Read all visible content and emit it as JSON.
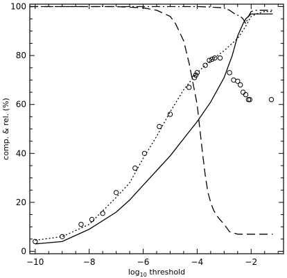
{
  "chart_data": {
    "type": "line",
    "xlabel_main": "log",
    "xlabel_sub": "10",
    "xlabel_rest": " threshold",
    "ylabel": "comp. & rel. (%)",
    "xlim": [
      -10.2,
      -0.8
    ],
    "ylim": [
      -1,
      101
    ],
    "x_ticks": [
      -10,
      -8,
      -6,
      -4,
      -2
    ],
    "x_tick_labels": [
      "−10",
      "−8",
      "−6",
      "−4",
      "−2"
    ],
    "y_ticks": [
      0,
      20,
      40,
      60,
      80,
      100
    ],
    "y_tick_labels": [
      "0",
      "20",
      "40",
      "60",
      "80",
      "100"
    ],
    "series": [
      {
        "style": "solid",
        "x": [
          -10,
          -9,
          -8,
          -7,
          -6.5,
          -6,
          -5.5,
          -5,
          -4.5,
          -4,
          -3.5,
          -3,
          -2.7,
          -2.5,
          -2.3,
          -2.2,
          -2.1,
          -2.0,
          -1.8,
          -1.5,
          -1.2
        ],
        "y": [
          3,
          4,
          9,
          16,
          21,
          27,
          33,
          39,
          46,
          53,
          61,
          71,
          80,
          88,
          93,
          95,
          96,
          97,
          97,
          97,
          97
        ]
      },
      {
        "style": "dotted",
        "x": [
          -10,
          -9,
          -8,
          -7,
          -6.5,
          -6,
          -5.5,
          -5,
          -4.5,
          -4,
          -3.5,
          -3,
          -2.5,
          -2.2,
          -2.0,
          -1.8,
          -1.5,
          -1.2
        ],
        "y": [
          4.5,
          6,
          11,
          22,
          28,
          38,
          47,
          57,
          66,
          73,
          78,
          82,
          87,
          92,
          96,
          97,
          98,
          98
        ]
      },
      {
        "style": "long-dash",
        "x": [
          -10.2,
          -7,
          -6,
          -5.5,
          -5,
          -4.8,
          -4.5,
          -4.3,
          -4.0,
          -3.9,
          -3.8,
          -3.7,
          -3.6,
          -3.5,
          -3.4,
          -3.3,
          -3.2,
          -3.0,
          -2.8,
          -2.5,
          -2.2,
          -2.0,
          -1.5,
          -1.2
        ],
        "y": [
          100,
          100,
          99.5,
          98.5,
          96,
          93,
          86,
          77,
          60,
          50,
          40,
          31,
          24,
          20,
          17,
          15,
          13.5,
          11,
          8,
          7,
          7,
          7,
          7,
          7
        ]
      },
      {
        "style": "dash-dot",
        "x": [
          -10.2,
          -7,
          -5,
          -4,
          -3.5,
          -3.0,
          -2.8,
          -2.6,
          -2.4,
          -2.3,
          -2.2,
          -2.1,
          -2.0,
          -1.8,
          -1.5,
          -1.2
        ],
        "y": [
          100,
          100,
          100,
          100,
          99.8,
          99.5,
          98.5,
          97,
          96,
          95,
          93,
          96,
          98,
          98.5,
          98.5,
          98.5
        ]
      }
    ],
    "markers": {
      "x": [
        -10,
        -9,
        -8.3,
        -7.9,
        -7.5,
        -7.0,
        -6.3,
        -5.95,
        -5.4,
        -5.0,
        -4.3,
        -4.1,
        -4.05,
        -4.0,
        -3.7,
        -3.55,
        -3.45,
        -3.35,
        -3.15,
        -2.8,
        -2.65,
        -2.5,
        -2.4,
        -2.3,
        -2.2,
        -2.1,
        -2.05,
        -1.25
      ],
      "y": [
        4,
        6,
        11,
        13,
        15.5,
        24,
        34,
        40,
        51,
        56,
        67,
        71,
        72,
        73,
        76,
        78,
        78.5,
        79,
        79,
        73,
        70,
        69.5,
        68,
        65,
        64,
        62,
        62,
        62
      ]
    }
  }
}
